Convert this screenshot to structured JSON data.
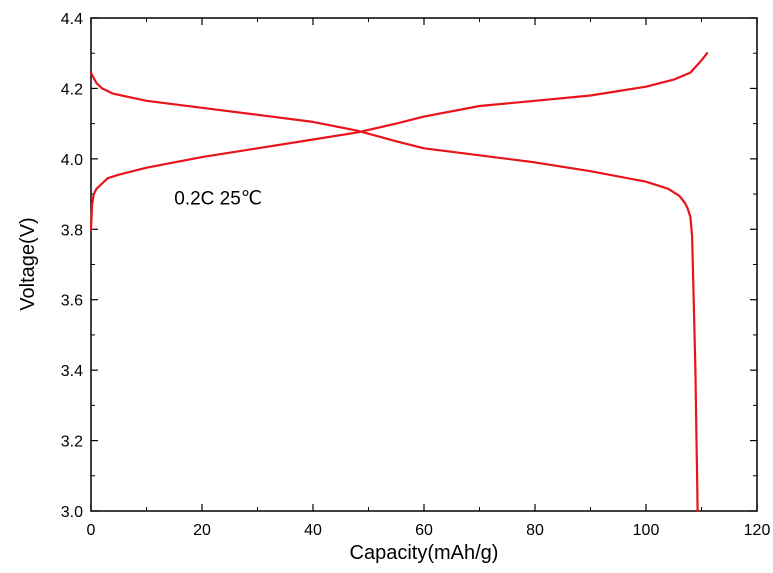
{
  "chart_data": {
    "type": "line",
    "xlabel": "Capacity(mAh/g)",
    "ylabel": "Voltage(V)",
    "xlim": [
      0,
      120
    ],
    "ylim": [
      3.0,
      4.4
    ],
    "xticks": [
      "0",
      "20",
      "40",
      "60",
      "80",
      "100",
      "120"
    ],
    "yticks": [
      "3.0",
      "3.2",
      "3.4",
      "3.6",
      "3.8",
      "4.0",
      "4.2",
      "4.4"
    ],
    "grid": false,
    "annotations": [
      {
        "text": "0.2C  25℃",
        "x": 15,
        "y": 3.87
      }
    ],
    "series_color": "#e8141a",
    "series": [
      {
        "x": [
          0,
          0.2,
          0.5,
          1,
          2,
          3,
          5,
          10,
          20,
          30,
          40,
          48,
          55,
          60,
          70,
          80,
          90,
          100,
          105,
          108,
          110,
          111
        ],
        "y": [
          3.8,
          3.87,
          3.9,
          3.915,
          3.93,
          3.945,
          3.955,
          3.975,
          4.005,
          4.03,
          4.055,
          4.075,
          4.1,
          4.12,
          4.15,
          4.165,
          4.18,
          4.205,
          4.225,
          4.245,
          4.28,
          4.3
        ]
      },
      {
        "x": [
          0,
          0.3,
          1,
          2,
          4,
          10,
          20,
          30,
          40,
          48,
          55,
          60,
          70,
          80,
          90,
          100,
          104,
          106,
          107,
          107.5,
          108,
          108.3,
          108.6,
          108.9,
          109.1,
          109.2,
          109.3
        ],
        "y": [
          4.245,
          4.235,
          4.215,
          4.2,
          4.185,
          4.165,
          4.145,
          4.125,
          4.105,
          4.08,
          4.05,
          4.03,
          4.01,
          3.99,
          3.965,
          3.935,
          3.915,
          3.895,
          3.875,
          3.86,
          3.835,
          3.78,
          3.6,
          3.4,
          3.2,
          3.1,
          3.0
        ]
      }
    ]
  }
}
